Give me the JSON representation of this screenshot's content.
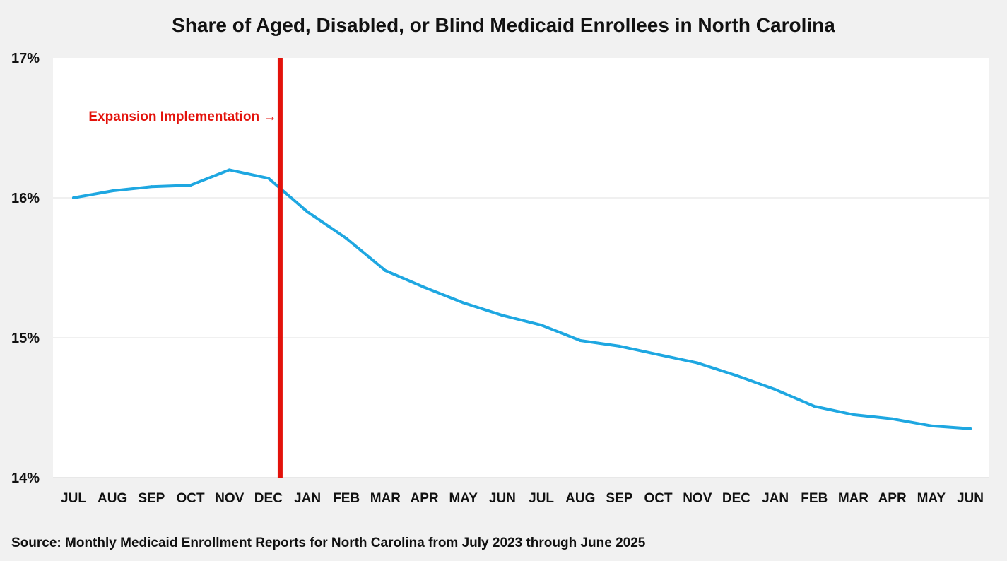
{
  "chart_data": {
    "type": "line",
    "title": "Share of Aged, Disabled, or Blind Medicaid Enrollees in North Carolina",
    "source": "Source: Monthly Medicaid Enrollment Reports for North Carolina  from July 2023 through June 2025",
    "categories": [
      "JUL",
      "AUG",
      "SEP",
      "OCT",
      "NOV",
      "DEC",
      "JAN",
      "FEB",
      "MAR",
      "APR",
      "MAY",
      "JUN",
      "JUL",
      "AUG",
      "SEP",
      "OCT",
      "NOV",
      "DEC",
      "JAN",
      "FEB",
      "MAR",
      "APR",
      "MAY",
      "JUN"
    ],
    "series": [
      {
        "color": "#1ea7e1",
        "values": [
          16.0,
          16.05,
          16.08,
          16.09,
          16.2,
          16.14,
          15.9,
          15.71,
          15.48,
          15.36,
          15.25,
          15.16,
          15.09,
          14.98,
          14.94,
          14.88,
          14.82,
          14.73,
          14.63,
          14.51,
          14.45,
          14.42,
          14.37,
          14.35
        ]
      }
    ],
    "ylim": [
      14,
      17
    ],
    "yticks": [
      {
        "value": 14,
        "label": "14%"
      },
      {
        "value": 15,
        "label": "15%"
      },
      {
        "value": 16,
        "label": "16%"
      },
      {
        "value": 17,
        "label": "17%"
      }
    ],
    "xlabel": "",
    "ylabel": "",
    "grid": true,
    "annotation": {
      "text": "Expansion Implementation →",
      "at_category_index": 5.3,
      "color": "#e3120b"
    }
  }
}
